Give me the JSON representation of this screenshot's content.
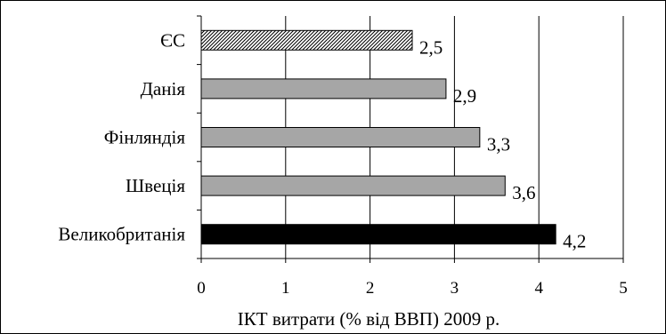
{
  "chart_data": {
    "type": "bar",
    "orientation": "horizontal",
    "categories": [
      "ЄС",
      "Данія",
      "Фінляндія",
      "Швеція",
      "Великобританія"
    ],
    "values": [
      2.5,
      2.9,
      3.3,
      3.6,
      4.2
    ],
    "value_labels": [
      "2,5",
      "2,9",
      "3,3",
      "3,6",
      "4,2"
    ],
    "bar_styles": [
      "hatched",
      "gray",
      "gray",
      "gray",
      "black"
    ],
    "xlabel": "ІКТ витрати (% від ВВП) 2009 р.",
    "ylabel": "",
    "xlim": [
      0,
      5
    ],
    "xticks": [
      0,
      1,
      2,
      3,
      4,
      5
    ],
    "xtick_labels": [
      "0",
      "1",
      "2",
      "3",
      "4",
      "5"
    ],
    "grid": "vertical",
    "colors": {
      "gray": "#a6a6a6",
      "black": "#000000",
      "hatch_fg": "#000000",
      "hatch_bg": "#ffffff",
      "grid": "#000000"
    }
  }
}
